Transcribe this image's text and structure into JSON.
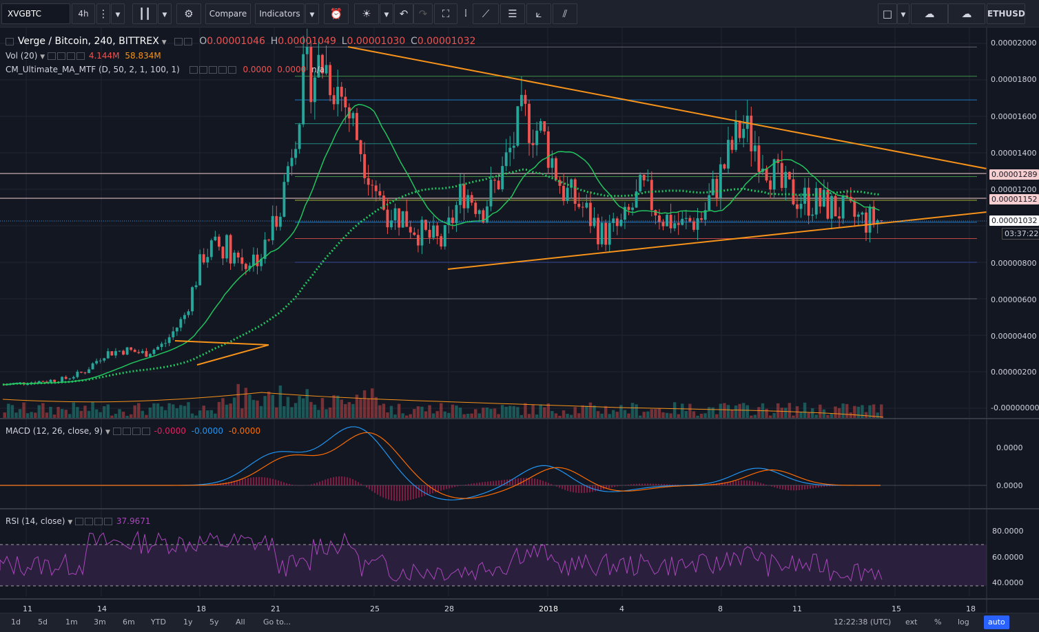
{
  "toolbar": {
    "symbol": "XVGBTC",
    "interval": "4h",
    "compare": "Compare",
    "indicators": "Indicators",
    "ethusd": "ETHUSD"
  },
  "legend": {
    "title": "Verge / Bitcoin, 240, BITTREX",
    "ohlc": [
      {
        "k": "O",
        "v": "0.00001046"
      },
      {
        "k": "H",
        "v": "0.00001049"
      },
      {
        "k": "L",
        "v": "0.00001030"
      },
      {
        "k": "C",
        "v": "0.00001032"
      }
    ],
    "vol": {
      "name": "Vol (20)",
      "v1": "4.144M",
      "v2": "58.834M"
    },
    "ma": {
      "name": "CM_Ultimate_MA_MTF (D, 50, 2, 1, 100, 1)",
      "v1": "0.0000",
      "v2": "0.0000",
      "v3": "n/a"
    },
    "macd": {
      "name": "MACD (12, 26, close, 9)",
      "v1": "-0.0000",
      "v2": "-0.0000",
      "v3": "-0.0000"
    },
    "rsi": {
      "name": "RSI (14, close)",
      "v1": "37.9671"
    }
  },
  "price_axis": [
    "0.00002000",
    "0.00001800",
    "0.00001600",
    "0.00001400",
    "0.00001200",
    "0.00000800",
    "0.00000600",
    "0.00000400",
    "0.00000200",
    "-0.00000000"
  ],
  "price_tags": {
    "resistance": "0.00001289",
    "ma": "0.00001152",
    "last": "0.00001032",
    "countdown": "03:37:22"
  },
  "macd_axis": [
    "0.0000",
    "0.0000"
  ],
  "rsi_axis": [
    "80.0000",
    "60.0000",
    "40.0000"
  ],
  "time_axis": [
    "11",
    "14",
    "18",
    "21",
    "25",
    "28",
    "2018",
    "4",
    "8",
    "11",
    "15",
    "18"
  ],
  "bottom": {
    "ranges": [
      "1d",
      "5d",
      "1m",
      "3m",
      "6m",
      "YTD",
      "1y",
      "5y",
      "All"
    ],
    "goto": "Go to...",
    "clock": "12:22:38 (UTC)",
    "ext": "ext",
    "pct": "%",
    "log": "log",
    "auto": "auto"
  },
  "colors": {
    "bg": "#131722",
    "up": "#26a69a",
    "down": "#ef5350",
    "trend": "#f7931a",
    "ma_green": "#22c55e",
    "macd": "#2196f3",
    "signal": "#ff6d00",
    "rsi": "#ab47bc"
  },
  "chart_data": {
    "type": "candlestick",
    "title": "Verge / Bitcoin, 240, BITTREX",
    "ylim": [
      0,
      2e-05
    ],
    "fib_levels": [
      1.98e-05,
      1.82e-05,
      1.69e-05,
      1.56e-05,
      1.45e-05,
      1.27e-05,
      1.14e-05,
      1.02e-05,
      9.3e-06,
      8e-06,
      6e-06
    ],
    "close_series": [
      1.3e-06,
      1.4e-06,
      1.5e-06,
      1.6e-06,
      2e-06,
      3e-06,
      3.2e-06,
      3e-06,
      3.5e-06,
      5e-06,
      8.5e-06,
      9e-06,
      8e-06,
      8.5e-06,
      1.2e-05,
      1.8e-05,
      1.9e-05,
      1.7e-05,
      1.4e-05,
      1.1e-05,
      1.05e-05,
      9.5e-06,
      9e-06,
      1.2e-05,
      1.1e-05,
      1.3e-05,
      1.6e-05,
      1.5e-05,
      1.2e-05,
      1.1e-05,
      9.5e-06,
      1e-05,
      1.2e-05,
      1.05e-05,
      1e-05,
      1.05e-05,
      1.3e-05,
      1.55e-05,
      1.4e-05,
      1.2e-05,
      1.15e-05,
      1.12e-05,
      1.08e-05,
      1.03e-05,
      1.03e-05
    ],
    "rsi_levels": [
      70,
      30
    ]
  }
}
